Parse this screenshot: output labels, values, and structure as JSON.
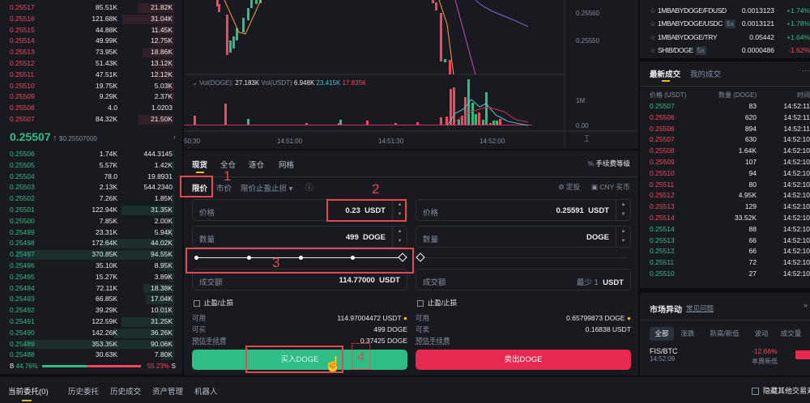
{
  "colors": {
    "buy": "#2ebd85",
    "sell": "#f6465d",
    "accent": "#f0b90b"
  },
  "orderbook": {
    "asks": [
      [
        "0.25517",
        "85.51K",
        "21.82K"
      ],
      [
        "0.25516",
        "121.68K",
        "31.04K"
      ],
      [
        "0.25515",
        "44.88K",
        "11.45K"
      ],
      [
        "0.25514",
        "49.99K",
        "12.75K"
      ],
      [
        "0.25513",
        "73.95K",
        "18.86K"
      ],
      [
        "0.25512",
        "51.43K",
        "13.12K"
      ],
      [
        "0.25511",
        "47.51K",
        "12.12K"
      ],
      [
        "0.25510",
        "19.75K",
        "5.03K"
      ],
      [
        "0.25509",
        "9.29K",
        "2.37K"
      ],
      [
        "0.25508",
        "4.0",
        "1.0203"
      ],
      [
        "0.25507",
        "84.32K",
        "21.50K"
      ]
    ],
    "last_price": "0.25507",
    "last_price_usd": "$0.25507000",
    "bids": [
      [
        "0.25506",
        "1.74K",
        "444.3145"
      ],
      [
        "0.25505",
        "5.57K",
        "1.42K"
      ],
      [
        "0.25504",
        "78.0",
        "19.8931"
      ],
      [
        "0.25503",
        "2.13K",
        "544.2340"
      ],
      [
        "0.25502",
        "7.26K",
        "1.85K"
      ],
      [
        "0.25501",
        "122.94K",
        "31.35K"
      ],
      [
        "0.25500",
        "7.85K",
        "2.00K"
      ],
      [
        "0.25499",
        "23.31K",
        "5.94K"
      ],
      [
        "0.25498",
        "172.64K",
        "44.02K"
      ],
      [
        "0.25497",
        "370.85K",
        "94.55K"
      ],
      [
        "0.25496",
        "35.10K",
        "8.95K"
      ],
      [
        "0.25495",
        "15.27K",
        "3.89K"
      ],
      [
        "0.25494",
        "72.11K",
        "18.38K"
      ],
      [
        "0.25493",
        "66.85K",
        "17.04K"
      ],
      [
        "0.25492",
        "39.29K",
        "10.01K"
      ],
      [
        "0.25491",
        "122.59K",
        "31.25K"
      ],
      [
        "0.25490",
        "142.26K",
        "36.26K"
      ],
      [
        "0.25489",
        "353.35K",
        "90.06K"
      ],
      [
        "0.25488",
        "30.63K",
        "7.80K"
      ]
    ],
    "buy_label": "B",
    "buy_pct": "44.76%",
    "sell_pct": "55.23%",
    "sell_label": "S",
    "buy_ratio": 44.76
  },
  "chart": {
    "price_ticks": [
      "0.25560",
      "0.25550"
    ],
    "vol_ticks": [
      "1M",
      "0.00"
    ],
    "time_ticks": [
      "50:30",
      "14:51:00",
      "14:51:30",
      "14:52:00"
    ],
    "vol_legend": {
      "label1": "Vol(DOGE):",
      "v1": "27.183K",
      "label2": "Vol(USDT)",
      "v2": "6.948K",
      "v3": "23.415K",
      "v4": "17.835K"
    }
  },
  "form": {
    "tabs": [
      "现货",
      "全仓",
      "逐仓",
      "网格"
    ],
    "fee_level": "手续费等级",
    "fee_icon": "percent-icon",
    "order_types": [
      "限价",
      "市价",
      "限价止盈止损"
    ],
    "dca": "定投",
    "cny_buy": "CNY 买币",
    "buy": {
      "price_label": "价格",
      "price": "0.23",
      "price_unit": "USDT",
      "qty_label": "数量",
      "qty": "499",
      "qty_unit": "DOGE",
      "total_label": "成交额",
      "total": "114.77000",
      "total_unit": "USDT",
      "tpsl": "止盈/止损",
      "avail_label": "可用",
      "avail": "114.97004472 USDT",
      "can_label": "可买",
      "can": "499 DOGE",
      "fee_label": "预估手续费",
      "fee": "0.37425 DOGE",
      "button": "买入DOGE",
      "slider_pct": 100
    },
    "sell": {
      "price_label": "价格",
      "price": "0.25591",
      "price_unit": "USDT",
      "qty_label": "数量",
      "qty": "",
      "qty_unit": "DOGE",
      "total_label": "成交额",
      "total_hint": "最少 1",
      "total_unit": "USDT",
      "tpsl": "止盈/止损",
      "avail_label": "可用",
      "avail": "0.65799873 DOGE",
      "can_label": "可卖",
      "can": "0.16838 USDT",
      "fee_label": "预估手续费",
      "button": "卖出DOGE",
      "slider_pct": 0
    }
  },
  "annotations": [
    "1",
    "2",
    "3",
    "4"
  ],
  "pairs": [
    [
      "1MBABYDOGE/FDUSD",
      "",
      "0.0013123",
      "+1.74%"
    ],
    [
      "1MBABYDOGE/USDC",
      "5x",
      "0.0013121",
      "+1.78%"
    ],
    [
      "1MBABYDOGE/TRY",
      "",
      "0.05442",
      "+1.64%"
    ],
    [
      "SHIB/DOGE",
      "5x",
      "0.0000486",
      "-1.62%"
    ]
  ],
  "trades": {
    "tabs": [
      "最新成交",
      "我的成交"
    ],
    "headers": [
      "价格 (USDT)",
      "数量 (DOGE)",
      "时间"
    ],
    "rows": [
      [
        "0.25507",
        "83",
        "14:52:11",
        "b"
      ],
      [
        "0.25506",
        "620",
        "14:52:11",
        "s"
      ],
      [
        "0.25506",
        "894",
        "14:52:11",
        "s"
      ],
      [
        "0.25507",
        "630",
        "14:52:10",
        "s"
      ],
      [
        "0.25508",
        "1.64K",
        "14:52:10",
        "s"
      ],
      [
        "0.25509",
        "107",
        "14:52:10",
        "s"
      ],
      [
        "0.25510",
        "94",
        "14:52:10",
        "s"
      ],
      [
        "0.25511",
        "80",
        "14:52:10",
        "s"
      ],
      [
        "0.25512",
        "4.95K",
        "14:52:10",
        "s"
      ],
      [
        "0.25513",
        "129",
        "14:52:10",
        "s"
      ],
      [
        "0.25514",
        "33.52K",
        "14:52:10",
        "s"
      ],
      [
        "0.25514",
        "88",
        "14:52:10",
        "b"
      ],
      [
        "0.25513",
        "66",
        "14:52:10",
        "b"
      ],
      [
        "0.25512",
        "66",
        "14:52:10",
        "b"
      ],
      [
        "0.25511",
        "72",
        "14:52:10",
        "b"
      ],
      [
        "0.25510",
        "27",
        "14:52:10",
        "b"
      ]
    ]
  },
  "market": {
    "title": "市场异动",
    "faq": "常见问题",
    "tabs": [
      "全部",
      "涨跌",
      "新高/新低",
      "波动",
      "成交量"
    ],
    "item": {
      "pair": "FIS/BTC",
      "time": "14:52:09",
      "change": "-12.66%",
      "note": "本周新低"
    }
  },
  "bottom": {
    "tabs": [
      "当前委托(0)",
      "历史委托",
      "历史成交",
      "资产管理",
      "机器人"
    ],
    "hide_other": "隐藏其他交易对"
  }
}
